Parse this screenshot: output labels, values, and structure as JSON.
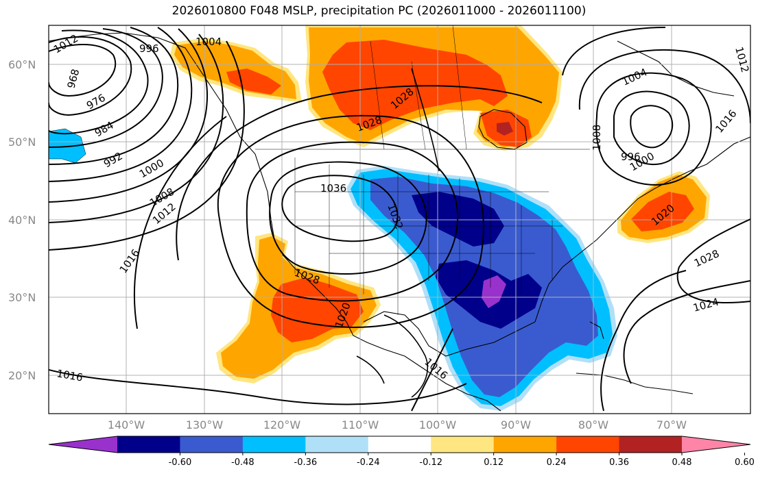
{
  "title": "2026010800 F048 MSLP, precipitation PC (2026011000 - 2026011100)",
  "map": {
    "lat_labels": [
      "60°N",
      "50°N",
      "40°N",
      "30°N",
      "20°N"
    ],
    "lon_labels": [
      "140°W",
      "130°W",
      "120°W",
      "110°W",
      "100°W",
      "90°W",
      "80°W",
      "70°W"
    ],
    "isobar_labels": [
      "968",
      "976",
      "984",
      "992",
      "1000",
      "1008",
      "1012",
      "1016",
      "996",
      "1004",
      "1028",
      "1028",
      "1036",
      "1032",
      "1028",
      "1020",
      "1016",
      "1004",
      "1008",
      "1000",
      "996",
      "1012",
      "1016",
      "1020",
      "1028",
      "1024",
      "1012",
      "1016"
    ]
  },
  "colorbar": {
    "labels": [
      "-0.60",
      "-0.48",
      "-0.36",
      "-0.24",
      "-0.12",
      "0.12",
      "0.24",
      "0.36",
      "0.48",
      "0.60"
    ],
    "colors": [
      "#9932cc",
      "#00008b",
      "#3a5bcf",
      "#00bfff",
      "#b0e0f8",
      "#ffffff",
      "#ffe680",
      "#ffa500",
      "#ff4500",
      "#b22222",
      "#ff85a8"
    ]
  }
}
